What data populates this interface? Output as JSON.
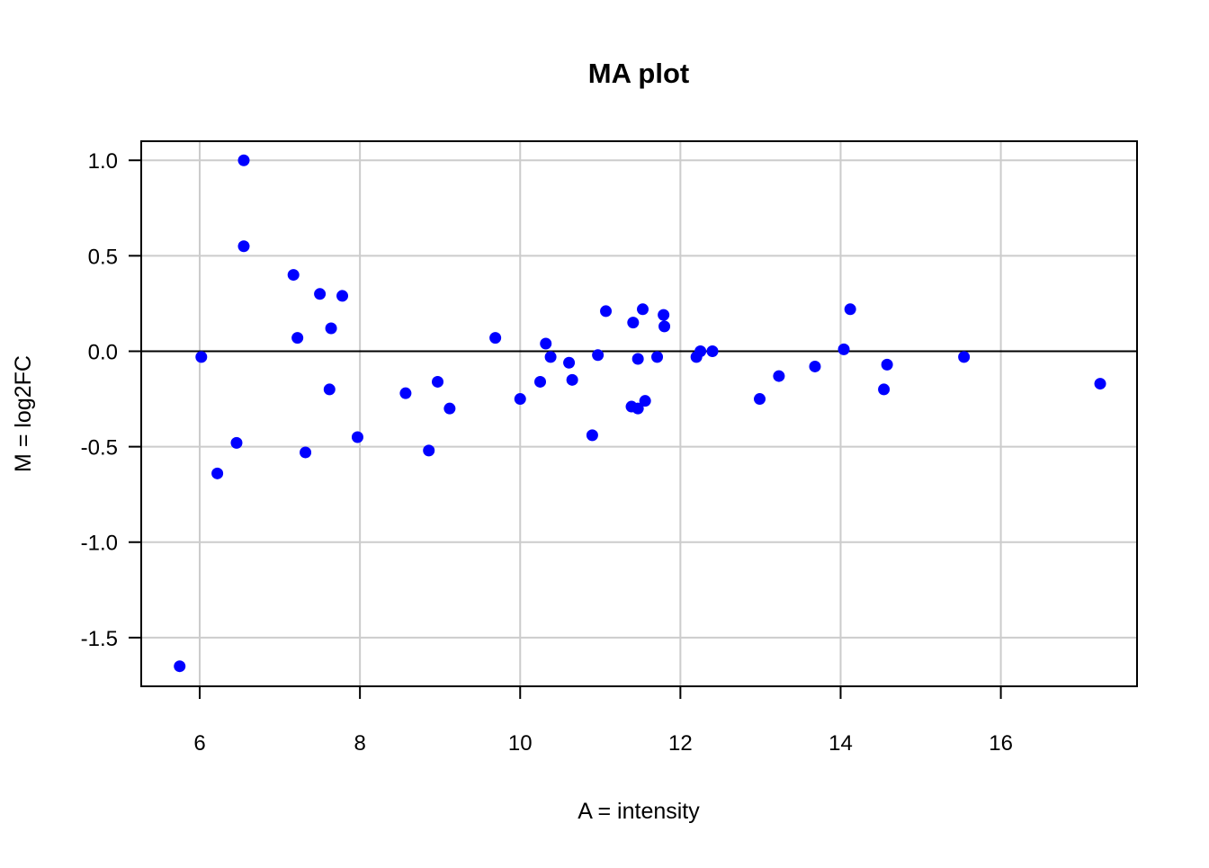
{
  "chart_data": {
    "type": "scatter",
    "title": "MA plot",
    "xlabel": "A = intensity",
    "ylabel": "M = log2FC",
    "xlim": [
      5.27,
      17.7
    ],
    "ylim": [
      -1.755,
      1.1
    ],
    "xticks": [
      6,
      8,
      10,
      12,
      14,
      16
    ],
    "yticks": [
      1.0,
      0.5,
      0.0,
      -0.5,
      -1.0,
      -1.5
    ],
    "xtick_labels": [
      "6",
      "8",
      "10",
      "12",
      "14",
      "16"
    ],
    "ytick_labels": [
      "1.0",
      "0.5",
      "0.0",
      "-0.5",
      "-1.0",
      "-1.5"
    ],
    "grid": true,
    "reference_line_y": 0,
    "point_color": "#0000ff",
    "grid_color": "#cccccc",
    "points": [
      {
        "x": 5.75,
        "y": -1.65
      },
      {
        "x": 6.02,
        "y": -0.03
      },
      {
        "x": 6.22,
        "y": -0.64
      },
      {
        "x": 6.46,
        "y": -0.48
      },
      {
        "x": 6.55,
        "y": 1.0
      },
      {
        "x": 6.55,
        "y": 0.55
      },
      {
        "x": 7.17,
        "y": 0.4
      },
      {
        "x": 7.22,
        "y": 0.07
      },
      {
        "x": 7.32,
        "y": -0.53
      },
      {
        "x": 7.5,
        "y": 0.3
      },
      {
        "x": 7.62,
        "y": -0.2
      },
      {
        "x": 7.64,
        "y": 0.12
      },
      {
        "x": 7.78,
        "y": 0.29
      },
      {
        "x": 7.97,
        "y": -0.45
      },
      {
        "x": 8.57,
        "y": -0.22
      },
      {
        "x": 8.86,
        "y": -0.52
      },
      {
        "x": 8.97,
        "y": -0.16
      },
      {
        "x": 9.12,
        "y": -0.3
      },
      {
        "x": 9.69,
        "y": 0.07
      },
      {
        "x": 10.0,
        "y": -0.25
      },
      {
        "x": 10.25,
        "y": -0.16
      },
      {
        "x": 10.32,
        "y": 0.04
      },
      {
        "x": 10.38,
        "y": -0.03
      },
      {
        "x": 10.61,
        "y": -0.06
      },
      {
        "x": 10.65,
        "y": -0.15
      },
      {
        "x": 10.9,
        "y": -0.44
      },
      {
        "x": 10.97,
        "y": -0.02
      },
      {
        "x": 11.07,
        "y": 0.21
      },
      {
        "x": 11.39,
        "y": -0.29
      },
      {
        "x": 11.41,
        "y": 0.15
      },
      {
        "x": 11.47,
        "y": -0.3
      },
      {
        "x": 11.47,
        "y": -0.04
      },
      {
        "x": 11.53,
        "y": 0.22
      },
      {
        "x": 11.56,
        "y": -0.26
      },
      {
        "x": 11.71,
        "y": -0.03
      },
      {
        "x": 11.79,
        "y": 0.19
      },
      {
        "x": 11.8,
        "y": 0.13
      },
      {
        "x": 12.2,
        "y": -0.03
      },
      {
        "x": 12.25,
        "y": 0.0
      },
      {
        "x": 12.4,
        "y": 0.0
      },
      {
        "x": 12.99,
        "y": -0.25
      },
      {
        "x": 13.23,
        "y": -0.13
      },
      {
        "x": 13.68,
        "y": -0.08
      },
      {
        "x": 14.04,
        "y": 0.01
      },
      {
        "x": 14.12,
        "y": 0.22
      },
      {
        "x": 14.54,
        "y": -0.2
      },
      {
        "x": 14.58,
        "y": -0.07
      },
      {
        "x": 15.54,
        "y": -0.03
      },
      {
        "x": 17.24,
        "y": -0.17
      }
    ]
  }
}
